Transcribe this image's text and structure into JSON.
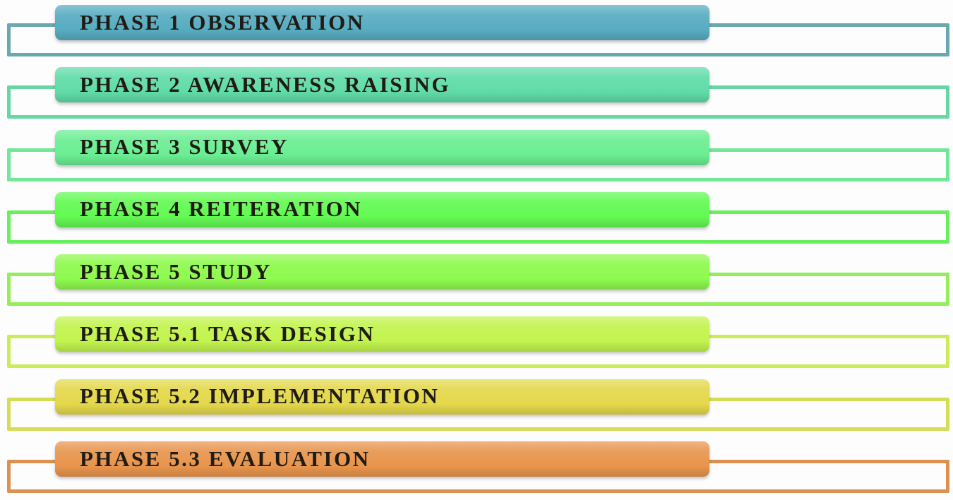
{
  "colors": {
    "background": "#fdfdfd",
    "text": "#201c15"
  },
  "phases": [
    {
      "label": "PHASE 1 OBSERVATION",
      "fill": "#58acc1",
      "line": "#68a8b0"
    },
    {
      "label": "PHASE 2 AWARENESS RAISING",
      "fill": "#60dca8",
      "line": "#66d6a4"
    },
    {
      "label": "PHASE 3 SURVEY",
      "fill": "#6bee93",
      "line": "#74e698"
    },
    {
      "label": "PHASE 4 REITERATION",
      "fill": "#63fa53",
      "line": "#68ef5e"
    },
    {
      "label": "PHASE 5 STUDY",
      "fill": "#8efa4e",
      "line": "#93ee58"
    },
    {
      "label": "PHASE 5.1 TASK DESIGN",
      "fill": "#c2f44e",
      "line": "#cbeb59"
    },
    {
      "label": "PHASE 5.2 IMPLEMENTATION",
      "fill": "#e4d84b",
      "line": "#d6dc55"
    },
    {
      "label": "PHASE 5.3 EVALUATION",
      "fill": "#e8954d",
      "line": "#dc9150"
    }
  ]
}
